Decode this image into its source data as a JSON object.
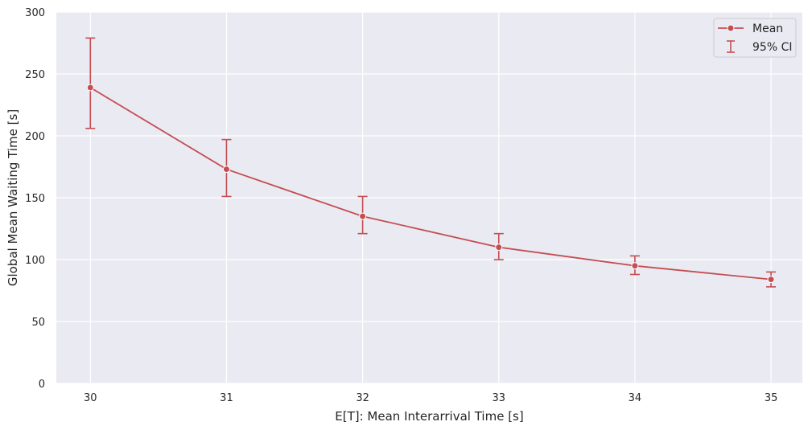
{
  "chart_data": {
    "type": "line",
    "title": "",
    "xlabel": "E[T]: Mean Interarrival Time [s]",
    "ylabel": "Global Mean Waiting Time [s]",
    "x": [
      30,
      31,
      32,
      33,
      34,
      35
    ],
    "x_tick_labels": [
      "30",
      "31",
      "32",
      "33",
      "34",
      "35"
    ],
    "y_ticks": [
      0,
      50,
      100,
      150,
      200,
      250,
      300
    ],
    "y_tick_labels": [
      "0",
      "50",
      "100",
      "150",
      "200",
      "250",
      "300"
    ],
    "xlim": [
      29.75,
      35.23
    ],
    "ylim": [
      0,
      300
    ],
    "grid": true,
    "legend_position": "top-right",
    "series": [
      {
        "name": "Mean",
        "values": [
          239,
          173,
          135,
          110,
          95,
          84
        ],
        "color": "#c44e52",
        "marker": "circle"
      }
    ],
    "error_bars": {
      "name": "95% CI",
      "color": "#c44e52",
      "lower": [
        206,
        151,
        121,
        100,
        88,
        78
      ],
      "upper": [
        279,
        197,
        151,
        121,
        103,
        90
      ]
    },
    "colors": {
      "plot_background": "#eaeaf2",
      "grid": "#ffffff",
      "text": "#262626"
    }
  }
}
